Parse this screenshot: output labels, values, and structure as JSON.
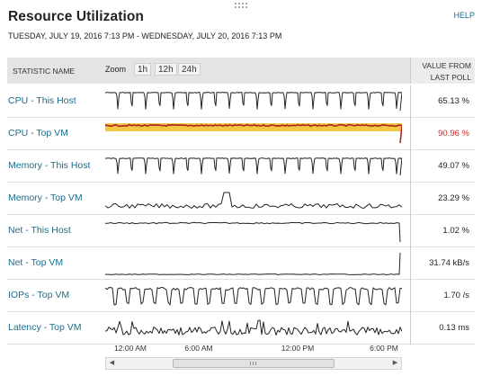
{
  "widget": {
    "title": "Resource Utilization",
    "help_label": "HELP",
    "date_range": "TUESDAY, JULY 19, 2016 7:13 PM - WEDNESDAY, JULY 20, 2016 7:13 PM"
  },
  "table": {
    "statistic_header": "STATISTIC NAME",
    "zoom_label": "Zoom",
    "zoom_options": [
      "1h",
      "12h",
      "24h"
    ],
    "value_header_line1": "VALUE FROM",
    "value_header_line2": "LAST POLL",
    "rows": [
      {
        "name": "CPU - This Host",
        "value": "65.13 %",
        "status": "normal"
      },
      {
        "name": "CPU - Top VM",
        "value": "90.96 %",
        "status": "critical"
      },
      {
        "name": "Memory - This Host",
        "value": "49.07 %",
        "status": "normal"
      },
      {
        "name": "Memory - Top VM",
        "value": "23.29 %",
        "status": "normal"
      },
      {
        "name": "Net - This Host",
        "value": "1.02 %",
        "status": "normal"
      },
      {
        "name": "Net - Top VM",
        "value": "31.74 kB/s",
        "status": "normal"
      },
      {
        "name": "IOPs - Top VM",
        "value": "1.70 /s",
        "status": "normal"
      },
      {
        "name": "Latency - Top VM",
        "value": "0.13 ms",
        "status": "normal"
      }
    ]
  },
  "time_axis": {
    "ticks": [
      "12:00 AM",
      "6:00 AM",
      "12:00 PM",
      "6:00 PM"
    ]
  },
  "scrollbar": {
    "left_arrow": "◀",
    "right_arrow": "▶"
  },
  "colors": {
    "link": "#1a6d8c",
    "critical_text": "#cc2222",
    "critical_line": "#b22222",
    "warning_band": "#f2c744",
    "spark_line": "#222222",
    "header_bg": "#e4e4e4"
  }
}
